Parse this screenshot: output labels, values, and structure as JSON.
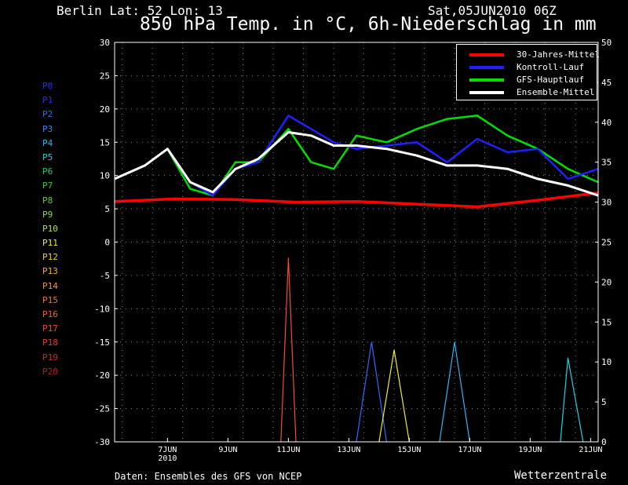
{
  "header": {
    "location": "Berlin  Lat: 52 Lon: 13",
    "run": "Sat,05JUN2010 06Z",
    "title": "850 hPa Temp. in °C, 6h-Niederschlag in mm"
  },
  "footer": {
    "source": "Daten: Ensembles des GFS von NCEP",
    "brand": "Wetterzentrale"
  },
  "members": [
    {
      "name": "P0",
      "color": "#2a2aff"
    },
    {
      "name": "P1",
      "color": "#2a2aff"
    },
    {
      "name": "P2",
      "color": "#2d6bff"
    },
    {
      "name": "P3",
      "color": "#2d8cff"
    },
    {
      "name": "P4",
      "color": "#27b7ff"
    },
    {
      "name": "P5",
      "color": "#22d0e6"
    },
    {
      "name": "P6",
      "color": "#22d07a"
    },
    {
      "name": "P7",
      "color": "#28d23c"
    },
    {
      "name": "P8",
      "color": "#5ad728"
    },
    {
      "name": "P9",
      "color": "#8ce028"
    },
    {
      "name": "P10",
      "color": "#b6e628"
    },
    {
      "name": "P11",
      "color": "#f0f028"
    },
    {
      "name": "P12",
      "color": "#f0d228"
    },
    {
      "name": "P13",
      "color": "#f0b428"
    },
    {
      "name": "P14",
      "color": "#f09628"
    },
    {
      "name": "P15",
      "color": "#f07828"
    },
    {
      "name": "P16",
      "color": "#f06428"
    },
    {
      "name": "P17",
      "color": "#f05028"
    },
    {
      "name": "P18",
      "color": "#e63c28"
    },
    {
      "name": "P19",
      "color": "#d22828"
    },
    {
      "name": "P20",
      "color": "#b41e1e"
    }
  ],
  "legend": [
    {
      "label": "30-Jahres-Mittel",
      "color": "#ff0000"
    },
    {
      "label": "Kontroll-Lauf",
      "color": "#2020ff"
    },
    {
      "label": "GFS-Hauptlauf",
      "color": "#00e000"
    },
    {
      "label": "Ensemble-Mittel",
      "color": "#ffffff"
    }
  ],
  "chart_data": {
    "type": "line",
    "x_day_ticks": [
      "7JUN",
      "9JUN",
      "11JUN",
      "13JUN",
      "15JUN",
      "17JUN",
      "19JUN",
      "21JUN"
    ],
    "x_year_label": "2010",
    "x_range": [
      "2010-06-05 06Z",
      "2010-06-21 06Z"
    ],
    "step_hours": 6,
    "y_left_label_unit": "°C",
    "y_left_range": [
      -30,
      30
    ],
    "y_left_ticks": [
      30,
      25,
      20,
      15,
      10,
      5,
      0,
      -5,
      -10,
      -15,
      -20,
      -25,
      -30
    ],
    "y_right_label_unit": "mm",
    "y_right_range": [
      0,
      50
    ],
    "y_right_ticks": [
      50,
      45,
      40,
      35,
      30,
      25,
      20,
      15,
      10,
      5,
      0
    ],
    "grid": "dotted",
    "legend_position": "top-right",
    "series": [
      {
        "name": "30-Jahres-Mittel",
        "axis": "left",
        "x": [
          "2010-06-05 06Z",
          "2010-06-07 06Z",
          "2010-06-09 06Z",
          "2010-06-11 06Z",
          "2010-06-13 06Z",
          "2010-06-15 06Z",
          "2010-06-17 06Z",
          "2010-06-19 06Z",
          "2010-06-21 06Z"
        ],
        "values": [
          6.1,
          6.5,
          6.4,
          6.0,
          6.1,
          5.7,
          5.3,
          6.3,
          7.4
        ]
      },
      {
        "name": "Ensemble-Mittel",
        "axis": "left",
        "x": [
          "2010-06-05 06Z",
          "2010-06-06 06Z",
          "2010-06-07 00Z",
          "2010-06-07 18Z",
          "2010-06-08 12Z",
          "2010-06-09 06Z",
          "2010-06-10 00Z",
          "2010-06-11 00Z",
          "2010-06-11 18Z",
          "2010-06-12 12Z",
          "2010-06-13 06Z",
          "2010-06-14 06Z",
          "2010-06-15 06Z",
          "2010-06-16 06Z",
          "2010-06-17 06Z",
          "2010-06-18 06Z",
          "2010-06-19 06Z",
          "2010-06-20 06Z",
          "2010-06-21 06Z"
        ],
        "values": [
          9.5,
          11.5,
          14,
          9,
          7.5,
          11,
          12.5,
          16.5,
          16,
          14.5,
          14.5,
          14,
          13,
          11.5,
          11.5,
          11,
          9.5,
          8.5,
          7
        ]
      },
      {
        "name": "GFS-Hauptlauf",
        "axis": "left",
        "x": [
          "2010-06-05 06Z",
          "2010-06-06 06Z",
          "2010-06-07 00Z",
          "2010-06-07 18Z",
          "2010-06-08 12Z",
          "2010-06-09 06Z",
          "2010-06-10 00Z",
          "2010-06-11 00Z",
          "2010-06-11 18Z",
          "2010-06-12 12Z",
          "2010-06-13 06Z",
          "2010-06-14 06Z",
          "2010-06-15 06Z",
          "2010-06-16 06Z",
          "2010-06-17 06Z",
          "2010-06-18 06Z",
          "2010-06-19 06Z",
          "2010-06-20 06Z",
          "2010-06-21 06Z"
        ],
        "values": [
          9.5,
          11.5,
          14,
          8,
          7,
          12,
          12,
          17,
          12,
          11,
          16,
          15,
          17,
          18.5,
          19,
          16,
          14,
          11,
          9
        ]
      },
      {
        "name": "Kontroll-Lauf",
        "axis": "left",
        "x": [
          "2010-06-05 06Z",
          "2010-06-06 06Z",
          "2010-06-07 00Z",
          "2010-06-07 18Z",
          "2010-06-08 12Z",
          "2010-06-09 06Z",
          "2010-06-10 00Z",
          "2010-06-11 00Z",
          "2010-06-11 18Z",
          "2010-06-12 12Z",
          "2010-06-13 06Z",
          "2010-06-14 06Z",
          "2010-06-15 06Z",
          "2010-06-16 06Z",
          "2010-06-17 06Z",
          "2010-06-18 06Z",
          "2010-06-19 06Z",
          "2010-06-20 06Z",
          "2010-06-21 06Z"
        ],
        "values": [
          9.5,
          11.5,
          14,
          9,
          7,
          11,
          12,
          19,
          17,
          15,
          14,
          14.5,
          15,
          12,
          15.5,
          13.5,
          14,
          9.5,
          11
        ]
      },
      {
        "name": "Niederschlag (P17)",
        "axis": "right",
        "x": [
          "2010-06-10 18Z",
          "2010-06-11 00Z",
          "2010-06-11 06Z"
        ],
        "values": [
          0,
          23,
          0
        ]
      },
      {
        "name": "Niederschlag (P2)",
        "axis": "right",
        "x": [
          "2010-06-13 06Z",
          "2010-06-13 18Z",
          "2010-06-14 06Z"
        ],
        "values": [
          0,
          12.5,
          0
        ]
      },
      {
        "name": "Niederschlag (P11)",
        "axis": "right",
        "x": [
          "2010-06-14 00Z",
          "2010-06-14 12Z",
          "2010-06-15 00Z"
        ],
        "values": [
          0,
          11.5,
          0
        ]
      },
      {
        "name": "Niederschlag (P4)",
        "axis": "right",
        "x": [
          "2010-06-16 00Z",
          "2010-06-16 12Z",
          "2010-06-17 00Z"
        ],
        "values": [
          0,
          12.5,
          0
        ]
      },
      {
        "name": "Niederschlag (P5)",
        "axis": "right",
        "x": [
          "2010-06-20 00Z",
          "2010-06-20 06Z",
          "2010-06-20 18Z"
        ],
        "values": [
          0,
          10.5,
          0
        ]
      }
    ]
  }
}
